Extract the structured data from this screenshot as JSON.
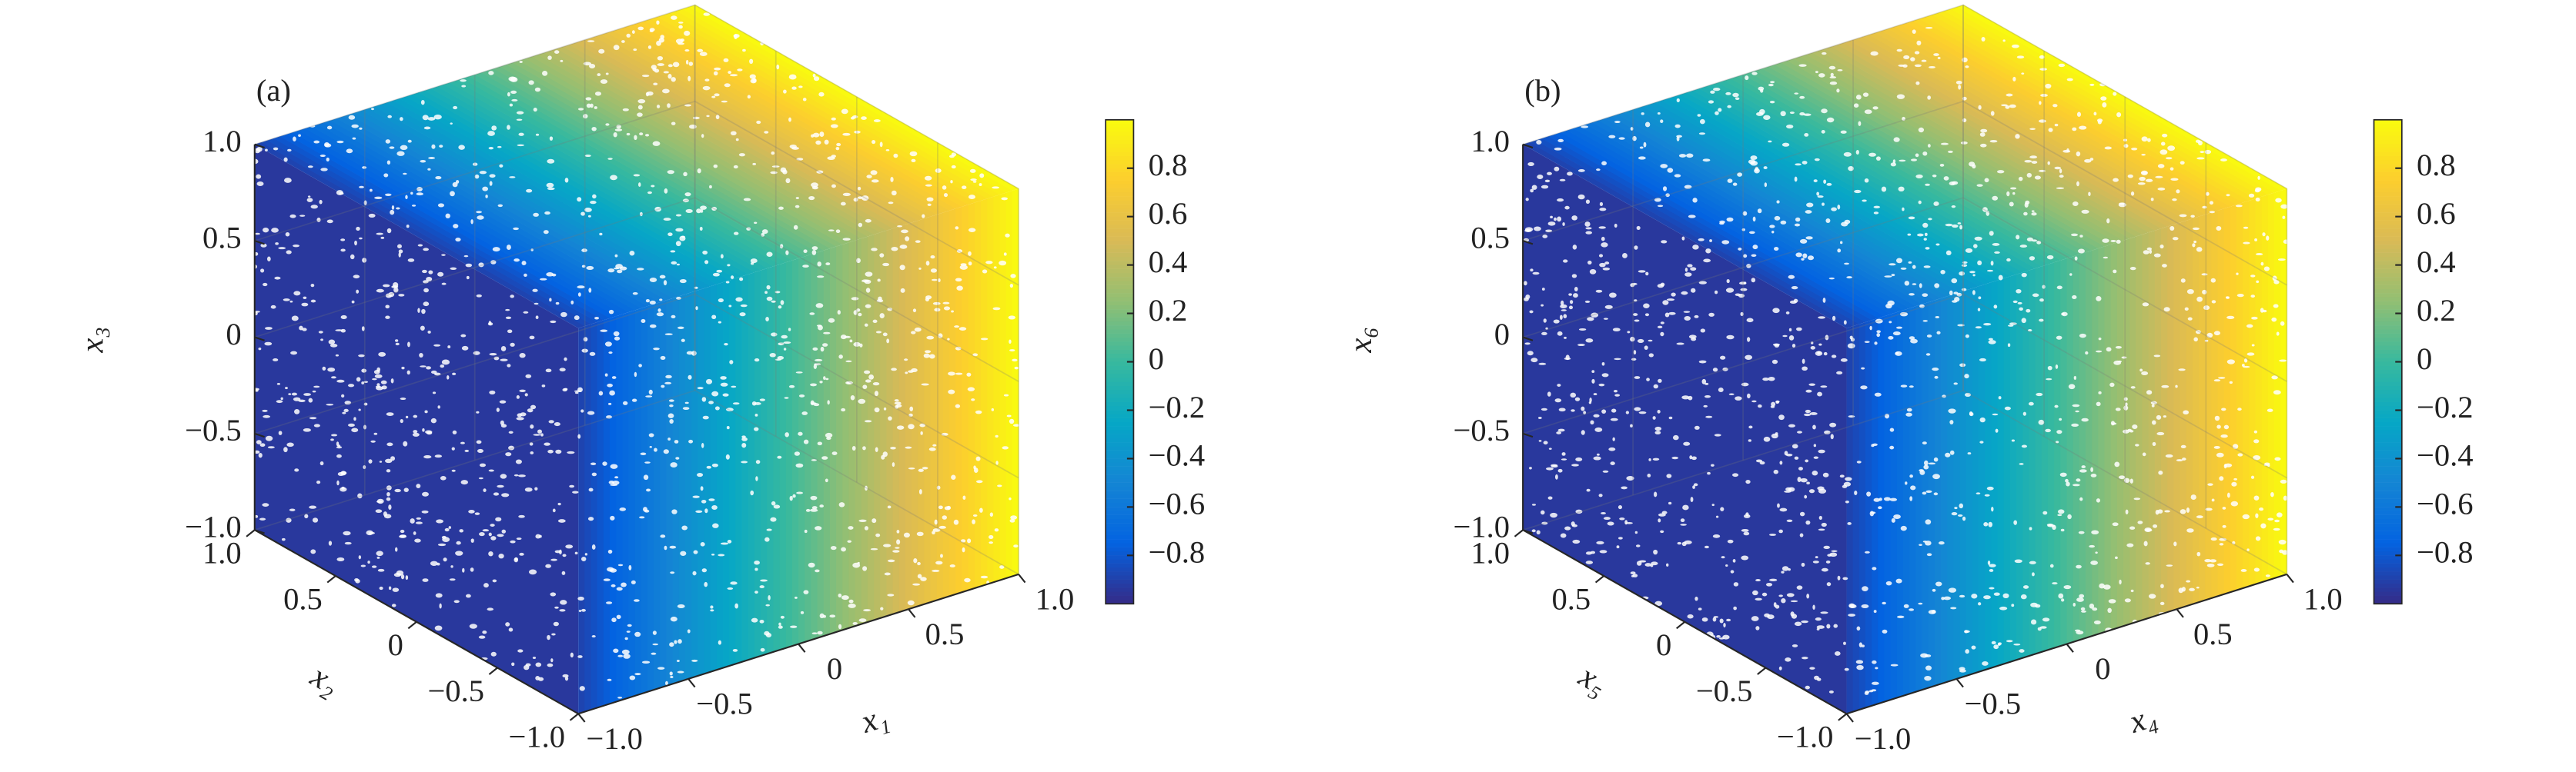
{
  "chart_data": [
    {
      "type": "scatter3d",
      "panel_label": "(a)",
      "xlabel": "x₁",
      "ylabel": "x₂",
      "zlabel": "x₃",
      "xlim": [
        -1,
        1
      ],
      "ylim": [
        -1,
        1
      ],
      "zlim": [
        -1,
        1
      ],
      "xticks": [
        {
          "value": -1,
          "label": "−1.0"
        },
        {
          "value": -0.5,
          "label": "−0.5"
        },
        0,
        0.5,
        {
          "value": 1,
          "label": "1.0"
        }
      ],
      "yticks": [
        {
          "value": -1,
          "label": "−1.0"
        },
        {
          "value": -0.5,
          "label": "−0.5"
        },
        0,
        0.5,
        {
          "value": 1,
          "label": "1.0"
        }
      ],
      "zticks": [
        {
          "value": -1,
          "label": "−1.0"
        },
        {
          "value": -0.5,
          "label": "−0.5"
        },
        0,
        0.5,
        {
          "value": 1,
          "label": "1.0"
        }
      ],
      "grid": true,
      "colormap": [
        "#352a87",
        "#0363e1",
        "#1485d4",
        "#06a7c6",
        "#38b99e",
        "#92bf73",
        "#d9ba56",
        "#fcce2e",
        "#f9fb0e"
      ],
      "clim": [
        -1,
        1
      ],
      "cticks": [
        {
          "value": -0.8,
          "label": "−0.8"
        },
        {
          "value": -0.6,
          "label": "−0.6"
        },
        {
          "value": -0.4,
          "label": "−0.4"
        },
        {
          "value": -0.2,
          "label": "−0.2"
        },
        0,
        0.2,
        0.4,
        0.6,
        0.8
      ]
    },
    {
      "type": "scatter3d",
      "panel_label": "(b)",
      "xlabel": "x₄",
      "ylabel": "x₅",
      "zlabel": "x₆",
      "xlim": [
        -1,
        1
      ],
      "ylim": [
        -1,
        1
      ],
      "zlim": [
        -1,
        1
      ],
      "xticks": [
        {
          "value": -1,
          "label": "−1.0"
        },
        {
          "value": -0.5,
          "label": "−0.5"
        },
        0,
        0.5,
        {
          "value": 1,
          "label": "1.0"
        }
      ],
      "yticks": [
        {
          "value": -1,
          "label": "−1.0"
        },
        {
          "value": -0.5,
          "label": "−0.5"
        },
        0,
        0.5,
        {
          "value": 1,
          "label": "1.0"
        }
      ],
      "zticks": [
        {
          "value": -1,
          "label": "−1.0"
        },
        {
          "value": -0.5,
          "label": "−0.5"
        },
        0,
        0.5,
        {
          "value": 1,
          "label": "1.0"
        }
      ],
      "grid": true,
      "colormap": [
        "#352a87",
        "#0363e1",
        "#1485d4",
        "#06a7c6",
        "#38b99e",
        "#92bf73",
        "#d9ba56",
        "#fcce2e",
        "#f9fb0e"
      ],
      "clim": [
        -1,
        1
      ],
      "cticks": [
        {
          "value": -0.8,
          "label": "−0.8"
        },
        {
          "value": -0.6,
          "label": "−0.6"
        },
        {
          "value": -0.4,
          "label": "−0.4"
        },
        {
          "value": -0.2,
          "label": "−0.2"
        },
        0,
        0.2,
        0.4,
        0.6,
        0.8
      ]
    }
  ]
}
